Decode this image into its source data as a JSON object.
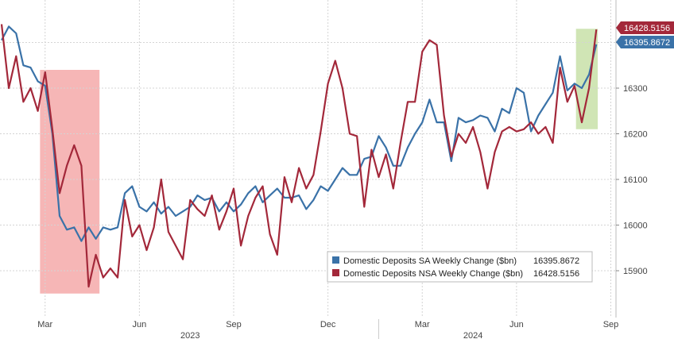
{
  "chart_data": {
    "type": "line",
    "ylim": [
      15840,
      16470
    ],
    "y_ticks": [
      15900,
      16000,
      16100,
      16200,
      16300,
      16400
    ],
    "grid": true,
    "x_axis": {
      "range": [
        0,
        83
      ],
      "month_ticks": [
        {
          "label": "Mar",
          "x": 6
        },
        {
          "label": "Jun",
          "x": 19
        },
        {
          "label": "Sep",
          "x": 32
        },
        {
          "label": "Dec",
          "x": 45
        },
        {
          "label": "Mar",
          "x": 58
        },
        {
          "label": "Jun",
          "x": 71
        },
        {
          "label": "Sep",
          "x": 84
        }
      ],
      "year_ticks": [
        {
          "label": "2023",
          "x": 26
        },
        {
          "label": "2024",
          "x": 65
        }
      ]
    },
    "highlights": [
      {
        "x_range": [
          5.3,
          13.5
        ],
        "y_range": [
          15850,
          16340
        ],
        "color": "#f4a9a9"
      },
      {
        "x_range": [
          79.2,
          82.2
        ],
        "y_range": [
          16210,
          16430
        ],
        "color": "#c8e0a8"
      }
    ],
    "series": [
      {
        "name": "Domestic Deposits SA Weekly Change ($bn)",
        "color": "#3a72a8",
        "last_value": "16395.8672",
        "x": [
          0,
          1,
          2,
          3,
          4,
          5,
          6,
          7,
          8,
          9,
          10,
          11,
          12,
          13,
          14,
          15,
          16,
          17,
          18,
          19,
          20,
          21,
          22,
          23,
          24,
          25,
          26,
          27,
          28,
          29,
          30,
          31,
          32,
          33,
          34,
          35,
          36,
          37,
          38,
          39,
          40,
          41,
          42,
          43,
          44,
          45,
          46,
          47,
          48,
          49,
          50,
          51,
          52,
          53,
          54,
          55,
          56,
          57,
          58,
          59,
          60,
          61,
          62,
          63,
          64,
          65,
          66,
          67,
          68,
          69,
          70,
          71,
          72,
          73,
          74,
          75,
          76,
          77,
          78,
          79,
          80,
          81,
          82
        ],
        "values": [
          16405,
          16435,
          16420,
          16350,
          16345,
          16315,
          16305,
          16200,
          16020,
          15990,
          15995,
          15965,
          15995,
          15970,
          15995,
          15990,
          15995,
          16070,
          16085,
          16040,
          16030,
          16050,
          16025,
          16040,
          16020,
          16030,
          16040,
          16065,
          16055,
          16060,
          16030,
          16050,
          16030,
          16045,
          16070,
          16085,
          16050,
          16065,
          16080,
          16060,
          16060,
          16065,
          16035,
          16055,
          16085,
          16075,
          16100,
          16125,
          16110,
          16110,
          16145,
          16150,
          16195,
          16170,
          16130,
          16130,
          16170,
          16200,
          16225,
          16275,
          16225,
          16225,
          16140,
          16235,
          16225,
          16230,
          16240,
          16235,
          16205,
          16255,
          16245,
          16300,
          16290,
          16205,
          16240,
          16265,
          16290,
          16370,
          16295,
          16310,
          16300,
          16330,
          16395.87
        ]
      },
      {
        "name": "Domestic Deposits NSA Weekly Change ($bn)",
        "color": "#a3283a",
        "last_value": "16428.5156",
        "x": [
          0,
          1,
          2,
          3,
          4,
          5,
          6,
          7,
          8,
          9,
          10,
          11,
          12,
          13,
          14,
          15,
          16,
          17,
          18,
          19,
          20,
          21,
          22,
          23,
          24,
          25,
          26,
          27,
          28,
          29,
          30,
          31,
          32,
          33,
          34,
          35,
          36,
          37,
          38,
          39,
          40,
          41,
          42,
          43,
          44,
          45,
          46,
          47,
          48,
          49,
          50,
          51,
          52,
          53,
          54,
          55,
          56,
          57,
          58,
          59,
          60,
          61,
          62,
          63,
          64,
          65,
          66,
          67,
          68,
          69,
          70,
          71,
          72,
          73,
          74,
          75,
          76,
          77,
          78,
          79,
          80,
          81,
          82
        ],
        "values": [
          16440,
          16300,
          16370,
          16270,
          16300,
          16250,
          16335,
          16210,
          16070,
          16130,
          16175,
          16130,
          15865,
          15935,
          15885,
          15905,
          15885,
          16055,
          15975,
          16000,
          15945,
          15995,
          16100,
          15985,
          15955,
          15925,
          16055,
          16035,
          16020,
          16065,
          15990,
          16030,
          16080,
          15955,
          16020,
          16060,
          16085,
          15980,
          15935,
          16105,
          16050,
          16125,
          16080,
          16110,
          16205,
          16310,
          16360,
          16300,
          16200,
          16195,
          16040,
          16165,
          16105,
          16155,
          16080,
          16180,
          16270,
          16270,
          16380,
          16405,
          16395,
          16240,
          16150,
          16200,
          16180,
          16215,
          16160,
          16080,
          16160,
          16205,
          16215,
          16205,
          16210,
          16225,
          16200,
          16215,
          16180,
          16345,
          16270,
          16305,
          16225,
          16300,
          16428.52
        ]
      }
    ]
  }
}
